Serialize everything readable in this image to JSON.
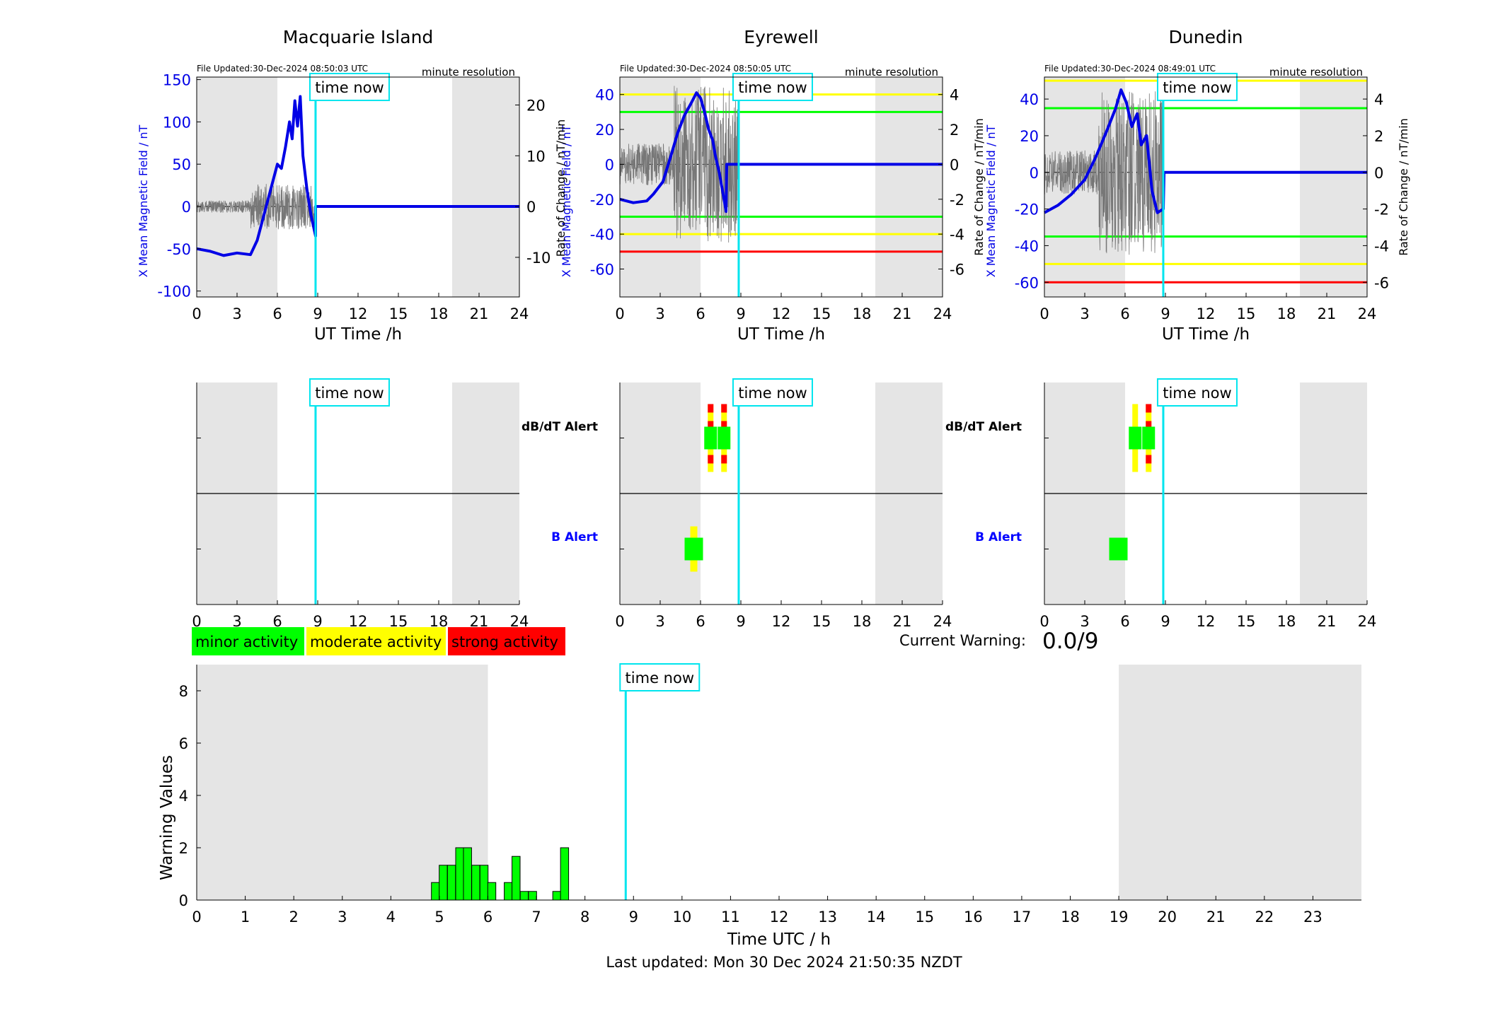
{
  "stations": [
    {
      "name": "Macquarie Island",
      "file_updated": "File Updated:30-Dec-2024 08:50:03 UTC",
      "resolution": "minute resolution",
      "left_ylabel": "X Mean Magnetic Field / nT",
      "right_ylabel": "",
      "left_ylim": [
        -107,
        153
      ],
      "left_ticks": [
        150,
        100,
        50,
        0,
        -50,
        -100
      ],
      "right_ylim": [
        -17.8,
        25.5
      ],
      "right_ticks": [
        20,
        10,
        0,
        -10
      ],
      "threshold_lines": [],
      "dbdt_alerts": [],
      "b_alerts": []
    },
    {
      "name": "Eyrewell",
      "file_updated": "File Updated:30-Dec-2024 08:50:05 UTC",
      "resolution": "minute resolution",
      "left_ylabel": "X Mean Magnetic Field / nT",
      "right_ylabel": "Rate of Change / nT/min",
      "left_ylim": [
        -76,
        50
      ],
      "left_ticks": [
        40,
        20,
        0,
        -20,
        -40,
        -60
      ],
      "right_ylim": [
        -7.6,
        5.0
      ],
      "right_ticks": [
        4,
        2,
        0,
        -2,
        -4,
        -6
      ],
      "threshold_lines": [
        {
          "value": 40,
          "color": "#ffff00"
        },
        {
          "value": 30,
          "color": "#00ff00"
        },
        {
          "value": -30,
          "color": "#00ff00"
        },
        {
          "value": -40,
          "color": "#ffff00"
        },
        {
          "value": -50,
          "color": "#ff0000"
        }
      ],
      "dbdt_alerts": [
        {
          "t": 6.75,
          "level": "strong"
        },
        {
          "t": 7.75,
          "level": "strong"
        }
      ],
      "b_alerts": [
        {
          "t": 5.5,
          "level": "moderate"
        }
      ]
    },
    {
      "name": "Dunedin",
      "file_updated": "File Updated:30-Dec-2024 08:49:01 UTC",
      "resolution": "minute resolution",
      "left_ylabel": "X Mean Magnetic Field / nT",
      "right_ylabel": "Rate of Change / nT/min",
      "left_ylim": [
        -68,
        52
      ],
      "left_ticks": [
        40,
        20,
        0,
        -20,
        -40,
        -60
      ],
      "right_ylim": [
        -6.8,
        5.2
      ],
      "right_ticks": [
        4,
        2,
        0,
        -2,
        -4,
        -6
      ],
      "threshold_lines": [
        {
          "value": 50,
          "color": "#ffff00"
        },
        {
          "value": 35,
          "color": "#00ff00"
        },
        {
          "value": -35,
          "color": "#00ff00"
        },
        {
          "value": -50,
          "color": "#ffff00"
        },
        {
          "value": -60,
          "color": "#ff0000"
        }
      ],
      "dbdt_alerts": [
        {
          "t": 6.75,
          "level": "moderate"
        },
        {
          "t": 7.75,
          "level": "strong"
        }
      ],
      "b_alerts": [
        {
          "t": 5.5,
          "level": "minor"
        }
      ]
    }
  ],
  "labels": {
    "time_now": "time now",
    "ut_time": "UT Time /h",
    "dbdt_alert": "dB/dT Alert",
    "b_alert": "B Alert",
    "current_warning_label": "Current Warning:",
    "current_warning_value": "0.0/9",
    "last_updated": "Last updated: Mon 30 Dec 2024 21:50:35 NZDT"
  },
  "legend": [
    {
      "label": "minor activity",
      "color": "#00ff00"
    },
    {
      "label": "moderate activity",
      "color": "#ffff00"
    },
    {
      "label": "strong activity",
      "color": "#ff0000"
    }
  ],
  "colors": {
    "field_line": "#0000e6",
    "time_now": "#00e5ee",
    "night_shade": "#e5e5e5",
    "rate_line": "#777777"
  },
  "time_now_hours": 8.84,
  "night_shading_hours": [
    [
      0,
      6
    ],
    [
      19,
      24
    ]
  ],
  "x_ticks": [
    0,
    3,
    6,
    9,
    12,
    15,
    18,
    21,
    24
  ],
  "chart_data": {
    "type": "bar",
    "title": "",
    "xlabel": "Time UTC / h",
    "ylabel": "Warning Values",
    "xlim": [
      0,
      24
    ],
    "ylim": [
      0,
      9
    ],
    "x_ticks": [
      0,
      1,
      2,
      3,
      4,
      5,
      6,
      7,
      8,
      9,
      10,
      11,
      12,
      13,
      14,
      15,
      16,
      17,
      18,
      19,
      20,
      21,
      22,
      23
    ],
    "y_ticks": [
      0,
      2,
      4,
      6,
      8
    ],
    "bar_width_hours": 0.1667,
    "bars": [
      {
        "x": 4.92,
        "value": 0.67
      },
      {
        "x": 5.08,
        "value": 1.33
      },
      {
        "x": 5.25,
        "value": 1.33
      },
      {
        "x": 5.42,
        "value": 2.0
      },
      {
        "x": 5.58,
        "value": 2.0
      },
      {
        "x": 5.75,
        "value": 1.33
      },
      {
        "x": 5.92,
        "value": 1.33
      },
      {
        "x": 6.08,
        "value": 0.67
      },
      {
        "x": 6.42,
        "value": 0.67
      },
      {
        "x": 6.58,
        "value": 1.67
      },
      {
        "x": 6.75,
        "value": 0.33
      },
      {
        "x": 6.92,
        "value": 0.33
      },
      {
        "x": 7.42,
        "value": 0.33
      },
      {
        "x": 7.58,
        "value": 2.0
      }
    ],
    "bar_color": "#00ff00"
  }
}
